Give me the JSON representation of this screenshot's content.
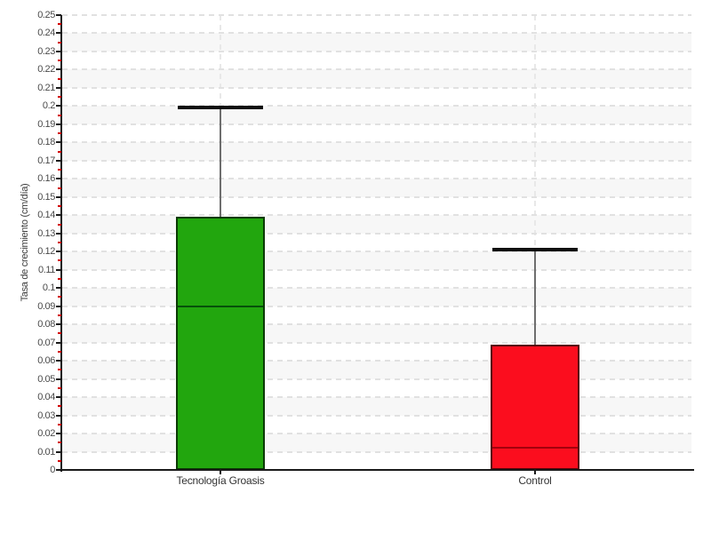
{
  "chart_data": {
    "type": "bar",
    "title": "",
    "xlabel": "",
    "ylabel": "Tasa de crecimiento (cm/día)",
    "ylim": [
      0,
      0.25
    ],
    "ytick_step": 0.01,
    "minor_ytick_step": 0.005,
    "ytick_labels": [
      "0",
      "0.01",
      "0.02",
      "0.03",
      "0.04",
      "0.05",
      "0.06",
      "0.07",
      "0.08",
      "0.09",
      "0.1",
      "0.11",
      "0.12",
      "0.13",
      "0.14",
      "0.15",
      "0.16",
      "0.17",
      "0.18",
      "0.19",
      "0.2",
      "0.21",
      "0.22",
      "0.23",
      "0.24",
      "0.25"
    ],
    "grid": {
      "horizontal_gridlines": "dashed at every 0.01",
      "vertical_gridlines": "dashed at each category center",
      "alternating_row_bands": true,
      "legend": "none"
    },
    "categories": [
      "Tecnología Groasis",
      "Control"
    ],
    "series": [
      {
        "name": "bar_top",
        "values": [
          0.139,
          0.069
        ]
      },
      {
        "name": "inner_line",
        "values": [
          0.09,
          0.012
        ]
      },
      {
        "name": "whisker_top",
        "values": [
          0.199,
          0.121
        ]
      }
    ],
    "bar_fill_colors": [
      "#22a60e",
      "#fb0d1e"
    ],
    "inner_line_colors": [
      "#07510a",
      "#a3000c"
    ],
    "whisker_line_color": "#6e6e6e",
    "whisker_cap_color": "#0d0d0d",
    "band_color": "#f7f7f7",
    "hgrid_color": "#e1e1e1",
    "vgrid_color": "#e8e8e8",
    "axis_color": "#1a1a1a",
    "major_tick_color": "#1a1a1a",
    "minor_tick_color": "#d40000",
    "tick_label_color": "#4a4a4a",
    "axis_title_color": "#3c3c3c",
    "category_label_color": "#333333"
  }
}
